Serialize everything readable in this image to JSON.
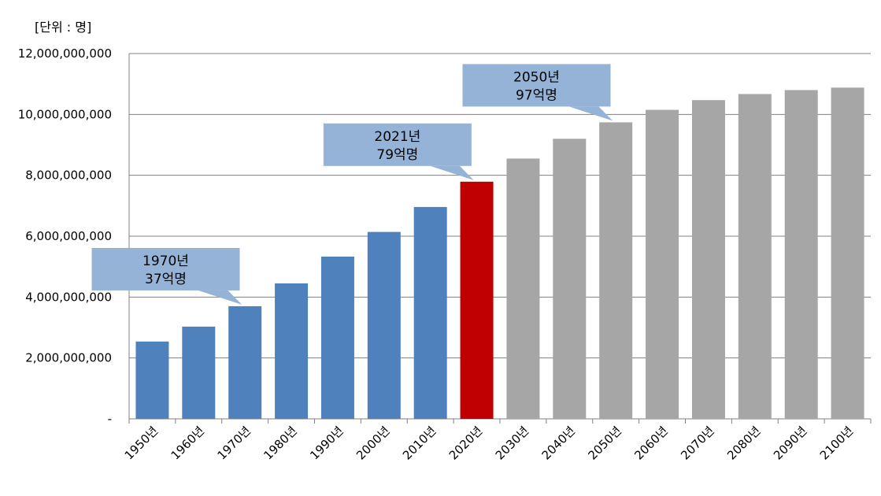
{
  "chart_data": {
    "type": "bar",
    "unit_label": "[단위 : 명]",
    "title": "",
    "xlabel": "",
    "ylabel": "",
    "categories": [
      "1950년",
      "1960년",
      "1970년",
      "1980년",
      "1990년",
      "2000년",
      "2010년",
      "2020년",
      "2030년",
      "2040년",
      "2050년",
      "2060년",
      "2070년",
      "2080년",
      "2090년",
      "2100년"
    ],
    "values": [
      2540000000,
      3030000000,
      3700000000,
      4450000000,
      5330000000,
      6140000000,
      6960000000,
      7790000000,
      8550000000,
      9200000000,
      9740000000,
      10150000000,
      10470000000,
      10670000000,
      10800000000,
      10880000000
    ],
    "bar_colors": [
      "#4f81bd",
      "#4f81bd",
      "#4f81bd",
      "#4f81bd",
      "#4f81bd",
      "#4f81bd",
      "#4f81bd",
      "#c00000",
      "#a6a6a6",
      "#a6a6a6",
      "#a6a6a6",
      "#a6a6a6",
      "#a6a6a6",
      "#a6a6a6",
      "#a6a6a6",
      "#a6a6a6"
    ],
    "ylim": [
      0,
      12000000000
    ],
    "yticks": [
      0,
      2000000000,
      4000000000,
      6000000000,
      8000000000,
      10000000000,
      12000000000
    ],
    "ytick_labels": [
      "-",
      "2,000,000,000",
      "4,000,000,000",
      "6,000,000,000",
      "8,000,000,000",
      "10,000,000,000",
      "12,000,000,000"
    ],
    "grid": true,
    "annotations": [
      {
        "target_index": 2,
        "line1": "1970년",
        "line2": "37억명"
      },
      {
        "target_index": 7,
        "line1": "2021년",
        "line2": "79억명"
      },
      {
        "target_index": 10,
        "line1": "2050년",
        "line2": "97억명"
      }
    ],
    "colors": {
      "historical": "#4f81bd",
      "current": "#c00000",
      "projection": "#a6a6a6",
      "callout": "#95b3d7",
      "grid": "#808080"
    }
  }
}
